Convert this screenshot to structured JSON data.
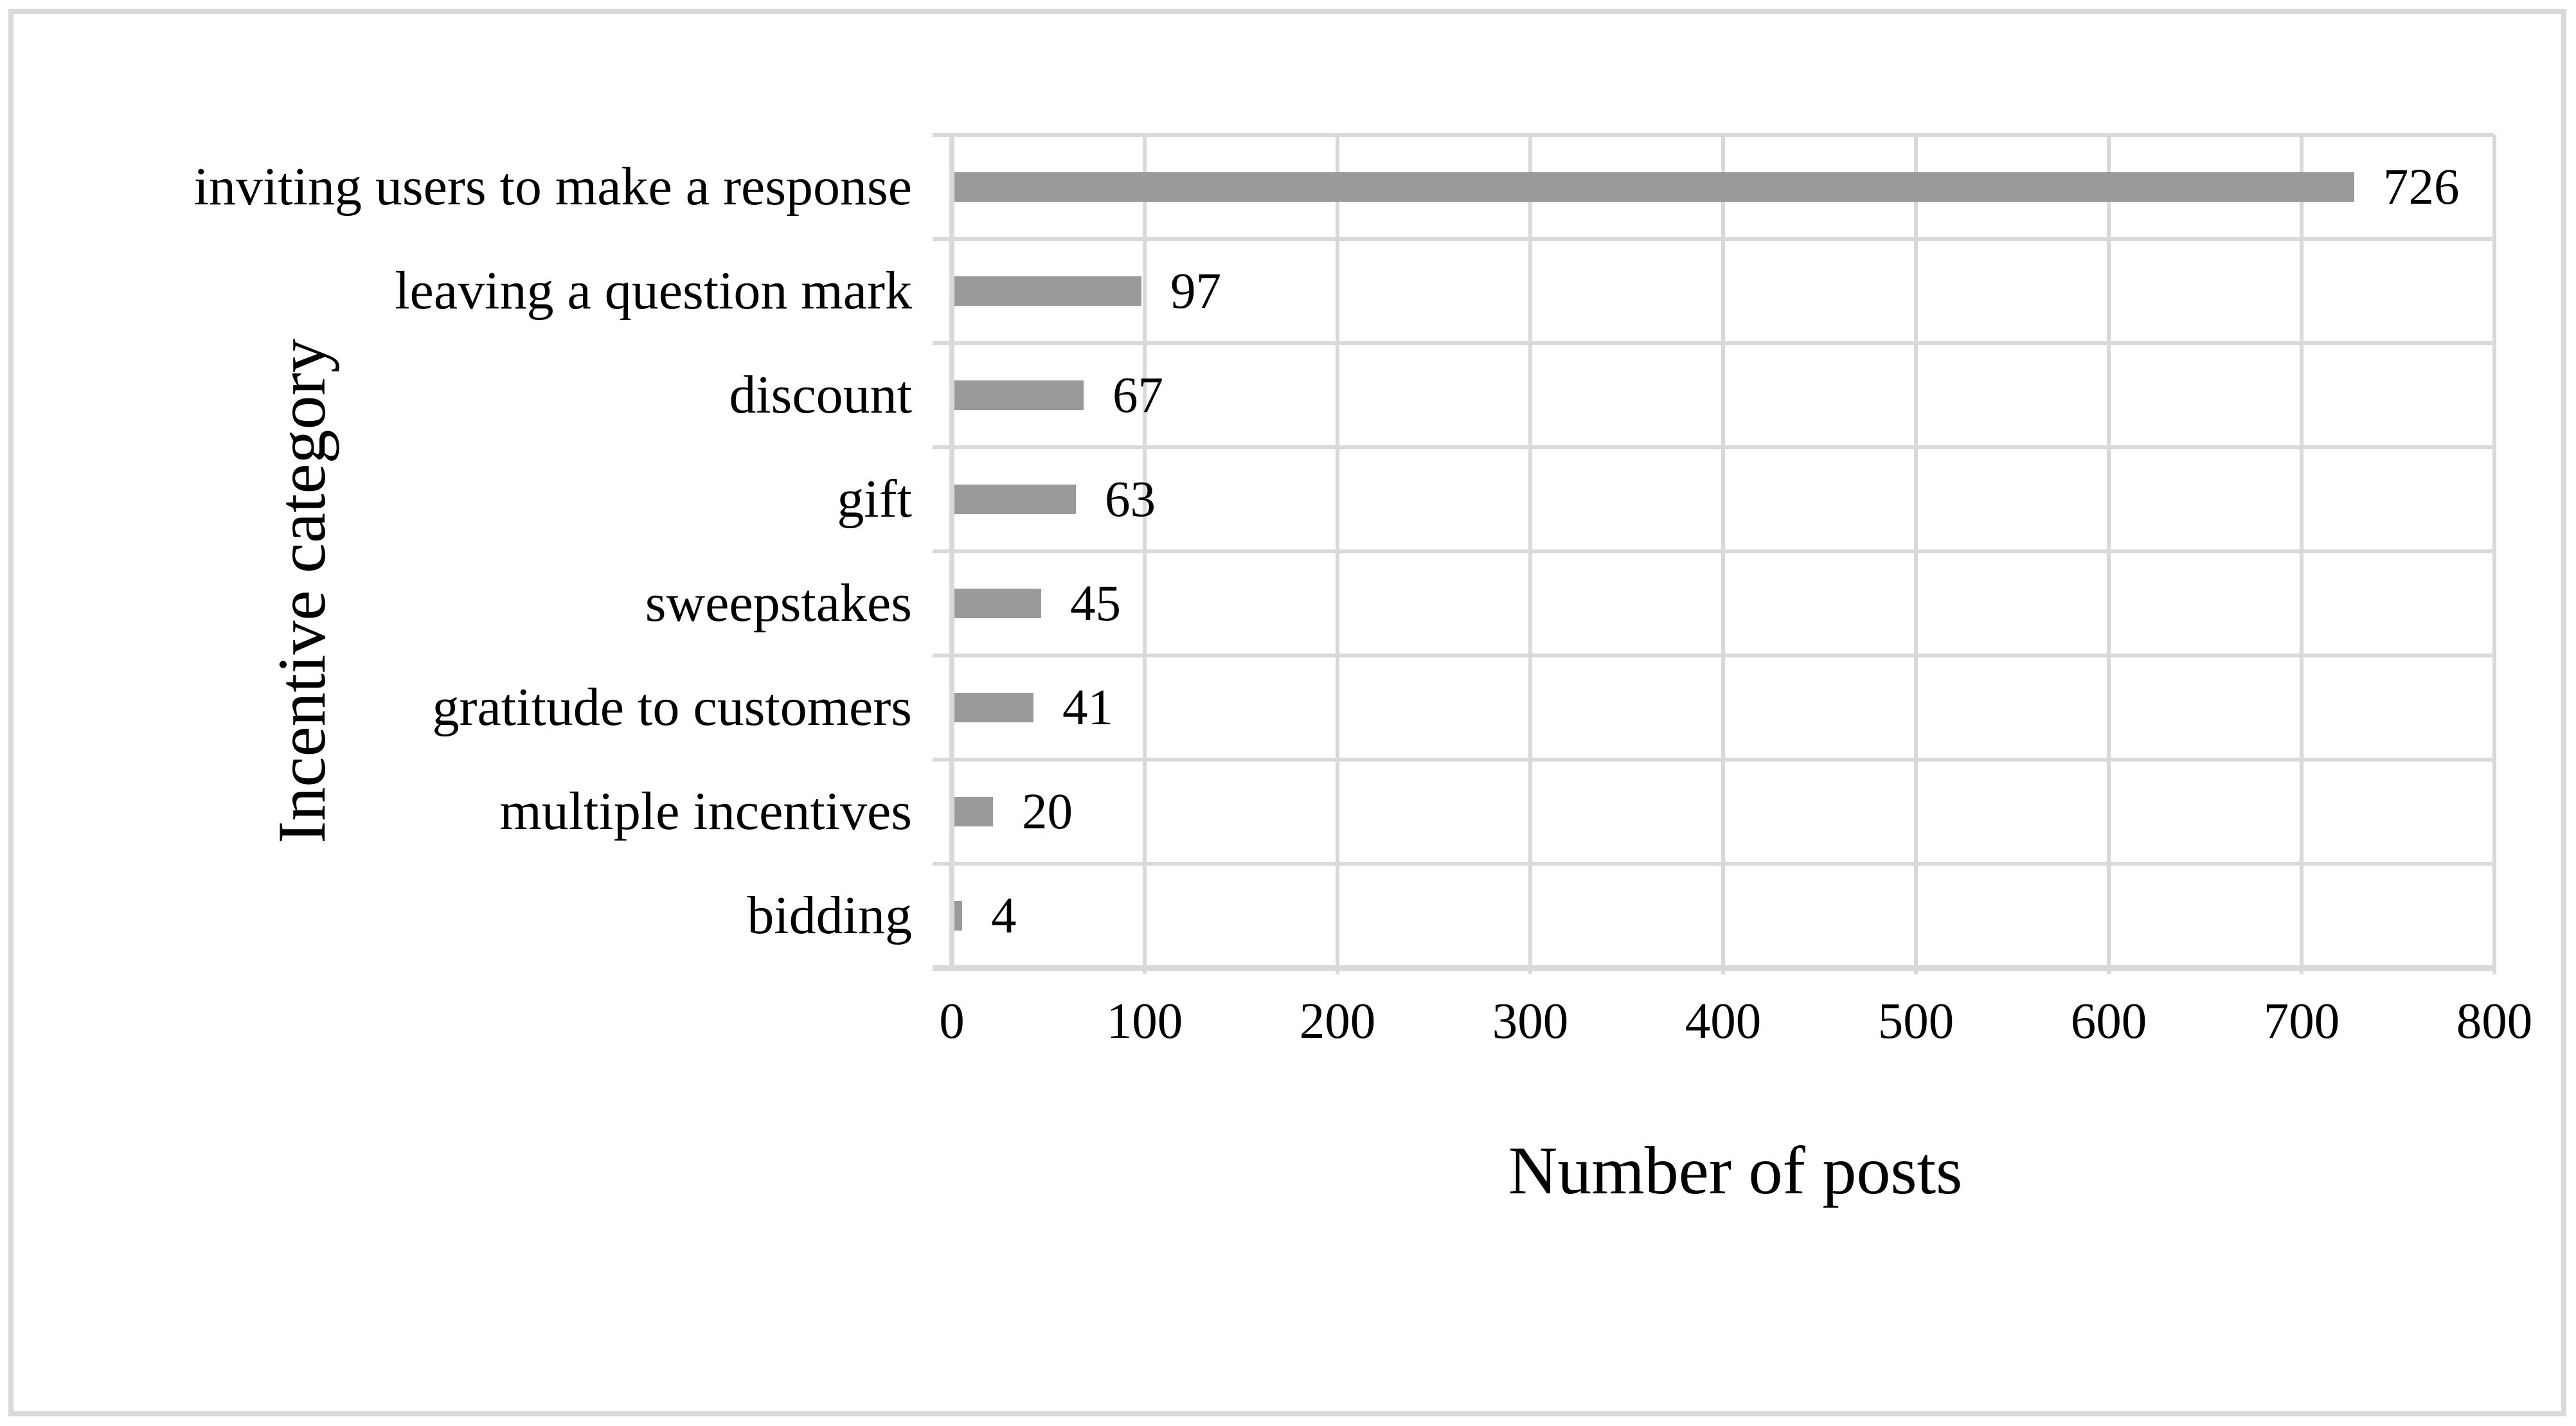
{
  "figure": {
    "background": "#ffffff",
    "frame_color": "#d9d9d9"
  },
  "chart_data": {
    "type": "bar",
    "orientation": "horizontal",
    "title": "",
    "categories": [
      "inviting users to make a response",
      "leaving a question mark",
      "discount",
      "gift",
      "sweepstakes",
      "gratitude to customers",
      "multiple incentives",
      "bidding"
    ],
    "values": [
      726,
      97,
      67,
      63,
      45,
      41,
      20,
      4
    ],
    "data_labels": [
      "726",
      "97",
      "67",
      "63",
      "45",
      "41",
      "20",
      "4"
    ],
    "xlabel": "Number of posts",
    "ylabel": "Incentive category",
    "xlim": [
      0,
      800
    ],
    "xticks": [
      0,
      100,
      200,
      300,
      400,
      500,
      600,
      700,
      800
    ],
    "grid": true,
    "legend": false,
    "bar_color": "#9a9a9a",
    "gridline_color": "#d9d9d9",
    "text_color": "#000000"
  }
}
